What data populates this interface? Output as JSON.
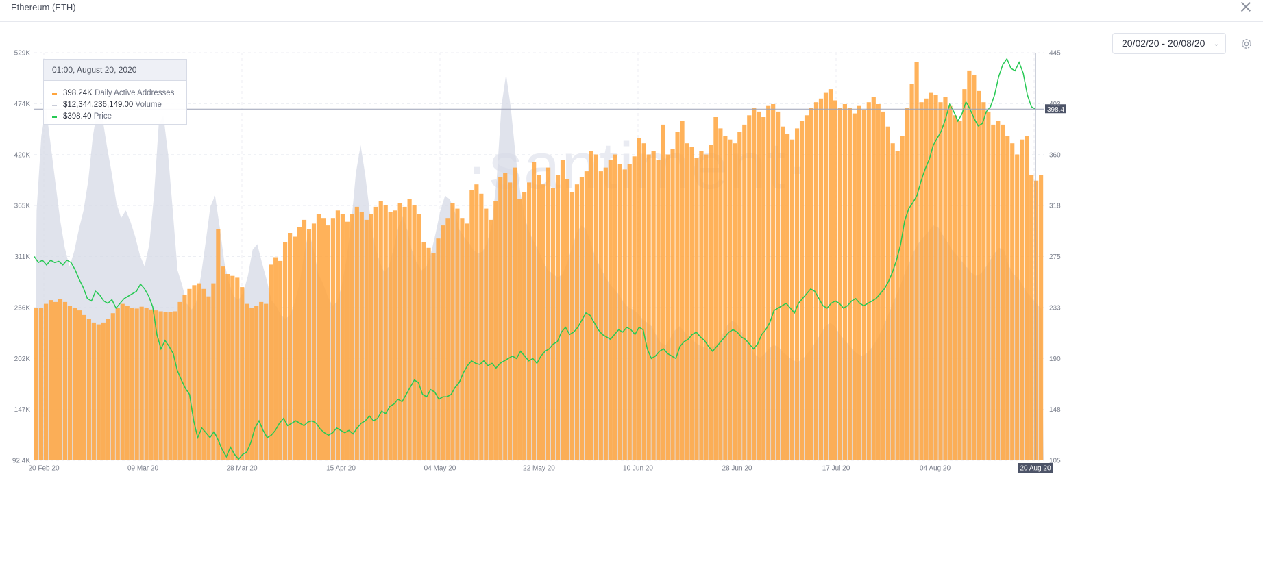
{
  "header": {
    "title": "Ethereum (ETH)"
  },
  "controls": {
    "date_range": "20/02/20 - 20/08/20"
  },
  "watermark": "·santiment·",
  "tooltip": {
    "datetime": "01:00, August 20, 2020",
    "rows": [
      {
        "value": "398.24K",
        "name": "Daily Active Addresses",
        "color": "#ffa43d"
      },
      {
        "value": "$12,344,236,149.00",
        "name": "Volume",
        "color": "#c9ccd8"
      },
      {
        "value": "$398.40",
        "name": "Price",
        "color": "#26c953"
      }
    ]
  },
  "chart_data": {
    "type": "bar",
    "x_tick_labels": [
      "20 Feb 20",
      "09 Mar 20",
      "28 Mar 20",
      "15 Apr 20",
      "04 May 20",
      "22 May 20",
      "10 Jun 20",
      "28 Jun 20",
      "17 Jul 20",
      "04 Aug 20",
      "20 Aug 20"
    ],
    "y_left_ticks": [
      "529K",
      "474K",
      "420K",
      "365K",
      "311K",
      "256K",
      "202K",
      "147K",
      "92.4K"
    ],
    "y_right_ticks": [
      "445",
      "403",
      "360",
      "318",
      "275",
      "233",
      "190",
      "148",
      "105"
    ],
    "y_left_range": [
      92400,
      529000
    ],
    "y_right_range": [
      105,
      445
    ],
    "price_marker": "398.4",
    "grid": true,
    "series": [
      {
        "name": "Daily Active Addresses",
        "kind": "bar",
        "axis": "left",
        "color": "#ffa43d",
        "values": [
          256000,
          256000,
          260000,
          264000,
          262000,
          265000,
          262000,
          258000,
          256000,
          253000,
          248000,
          244000,
          240000,
          238000,
          240000,
          244000,
          250000,
          256000,
          260000,
          258000,
          256000,
          255000,
          257000,
          256000,
          254000,
          253000,
          252000,
          251000,
          251000,
          252000,
          262000,
          270000,
          276000,
          280000,
          282000,
          276000,
          268000,
          282000,
          340000,
          300000,
          292000,
          290000,
          288000,
          278000,
          260000,
          256000,
          258000,
          262000,
          260000,
          302000,
          310000,
          306000,
          326000,
          336000,
          332000,
          342000,
          350000,
          340000,
          346000,
          356000,
          352000,
          344000,
          352000,
          360000,
          356000,
          348000,
          356000,
          364000,
          358000,
          350000,
          356000,
          364000,
          370000,
          366000,
          358000,
          360000,
          368000,
          364000,
          372000,
          366000,
          356000,
          326000,
          320000,
          314000,
          330000,
          344000,
          352000,
          368000,
          362000,
          352000,
          346000,
          382000,
          388000,
          378000,
          362000,
          350000,
          370000,
          396000,
          400000,
          390000,
          406000,
          372000,
          380000,
          390000,
          412000,
          398000,
          388000,
          406000,
          384000,
          398000,
          414000,
          394000,
          380000,
          388000,
          396000,
          402000,
          424000,
          420000,
          402000,
          406000,
          414000,
          420000,
          410000,
          404000,
          410000,
          418000,
          438000,
          432000,
          420000,
          424000,
          414000,
          452000,
          420000,
          426000,
          444000,
          456000,
          432000,
          428000,
          416000,
          424000,
          420000,
          430000,
          460000,
          448000,
          440000,
          436000,
          432000,
          444000,
          452000,
          462000,
          470000,
          466000,
          460000,
          472000,
          474000,
          466000,
          450000,
          442000,
          436000,
          448000,
          456000,
          462000,
          470000,
          476000,
          480000,
          486000,
          490000,
          478000,
          470000,
          474000,
          470000,
          464000,
          472000,
          468000,
          476000,
          482000,
          474000,
          466000,
          450000,
          432000,
          424000,
          440000,
          470000,
          496000,
          519000,
          476000,
          480000,
          486000,
          484000,
          476000,
          482000,
          472000,
          462000,
          456000,
          490000,
          510000,
          505000,
          488000,
          476000,
          466000,
          452000,
          456000,
          452000,
          440000,
          432000,
          420000,
          436000,
          440000,
          398000,
          392000,
          398000
        ]
      },
      {
        "name": "Volume",
        "kind": "area",
        "axis": "left",
        "color": "#d6d9e6",
        "values": [
          360000,
          440000,
          470000,
          430000,
          390000,
          350000,
          320000,
          300000,
          316000,
          340000,
          360000,
          392000,
          440000,
          470000,
          460000,
          428000,
          400000,
          368000,
          352000,
          360000,
          348000,
          332000,
          312000,
          300000,
          324000,
          376000,
          452000,
          462000,
          420000,
          360000,
          296000,
          280000,
          260000,
          254000,
          262000,
          290000,
          326000,
          364000,
          376000,
          342000,
          304000,
          282000,
          268000,
          264000,
          272000,
          290000,
          318000,
          324000,
          304000,
          286000,
          264000,
          258000,
          248000,
          244000,
          248000,
          262000,
          282000,
          314000,
          338000,
          318000,
          292000,
          282000,
          268000,
          258000,
          262000,
          280000,
          308000,
          346000,
          400000,
          430000,
          398000,
          356000,
          324000,
          306000,
          294000,
          300000,
          318000,
          342000,
          354000,
          338000,
          316000,
          304000,
          296000,
          300000,
          314000,
          336000,
          360000,
          376000,
          372000,
          360000,
          340000,
          332000,
          326000,
          318000,
          314000,
          316000,
          326000,
          346000,
          394000,
          472000,
          506000,
          470000,
          420000,
          380000,
          352000,
          336000,
          326000,
          316000,
          304000,
          296000,
          292000,
          288000,
          292000,
          304000,
          320000,
          336000,
          344000,
          340000,
          326000,
          310000,
          300000,
          290000,
          282000,
          276000,
          270000,
          262000,
          256000,
          254000,
          250000,
          244000,
          240000,
          236000,
          226000,
          218000,
          216000,
          224000,
          232000,
          236000,
          230000,
          224000,
          220000,
          216000,
          214000,
          212000,
          214000,
          218000,
          226000,
          236000,
          242000,
          240000,
          232000,
          222000,
          214000,
          206000,
          202000,
          206000,
          212000,
          216000,
          214000,
          208000,
          204000,
          200000,
          198000,
          200000,
          206000,
          212000,
          220000,
          228000,
          236000,
          240000,
          236000,
          228000,
          222000,
          216000,
          210000,
          206000,
          204000,
          208000,
          214000,
          222000,
          232000,
          244000,
          256000,
          268000,
          280000,
          294000,
          306000,
          318000,
          326000,
          332000,
          338000,
          344000,
          342000,
          334000,
          326000,
          318000,
          312000,
          306000,
          300000,
          294000,
          290000,
          292000,
          298000,
          306000,
          314000,
          320000,
          318000,
          302000,
          292000,
          288000,
          280000,
          272000,
          266000,
          260000,
          255000
        ]
      },
      {
        "name": "Price",
        "kind": "line",
        "axis": "right",
        "color": "#26c953",
        "values": [
          275,
          270,
          272,
          268,
          272,
          270,
          271,
          268,
          272,
          270,
          264,
          256,
          249,
          240,
          238,
          246,
          243,
          238,
          236,
          239,
          232,
          236,
          240,
          242,
          244,
          246,
          252,
          248,
          242,
          233,
          210,
          198,
          205,
          200,
          194,
          180,
          172,
          165,
          160,
          138,
          124,
          132,
          128,
          124,
          129,
          122,
          114,
          108,
          116,
          110,
          106,
          110,
          112,
          120,
          132,
          138,
          130,
          124,
          126,
          130,
          136,
          140,
          134,
          136,
          138,
          136,
          134,
          137,
          138,
          136,
          131,
          128,
          126,
          128,
          132,
          130,
          128,
          130,
          127,
          132,
          136,
          138,
          142,
          138,
          140,
          146,
          144,
          150,
          152,
          156,
          154,
          160,
          166,
          172,
          170,
          160,
          158,
          164,
          162,
          156,
          158,
          158,
          160,
          166,
          170,
          178,
          184,
          188,
          186,
          185,
          188,
          184,
          186,
          182,
          186,
          188,
          190,
          192,
          190,
          196,
          192,
          188,
          190,
          186,
          192,
          196,
          198,
          202,
          204,
          212,
          216,
          210,
          212,
          216,
          222,
          228,
          226,
          220,
          214,
          210,
          208,
          206,
          210,
          214,
          212,
          216,
          214,
          210,
          216,
          214,
          198,
          190,
          192,
          196,
          198,
          194,
          192,
          190,
          200,
          204,
          206,
          210,
          212,
          208,
          205,
          200,
          196,
          200,
          204,
          208,
          212,
          214,
          212,
          208,
          206,
          202,
          198,
          202,
          210,
          214,
          220,
          230,
          232,
          234,
          236,
          232,
          228,
          236,
          240,
          244,
          248,
          246,
          240,
          234,
          232,
          236,
          238,
          236,
          232,
          234,
          238,
          240,
          236,
          234,
          236,
          238,
          240,
          244,
          248,
          254,
          262,
          272,
          285,
          305,
          315,
          320,
          326,
          338,
          348,
          356,
          368,
          374,
          380,
          390,
          402,
          396,
          388,
          394,
          404,
          398,
          390,
          384,
          386,
          396,
          400,
          410,
          425,
          435,
          440,
          432,
          430,
          437,
          428,
          410,
          400,
          398
        ]
      }
    ]
  },
  "icons": {
    "close": "close-icon",
    "settings": "gear-icon",
    "dropdown": "chevron-down-icon"
  }
}
